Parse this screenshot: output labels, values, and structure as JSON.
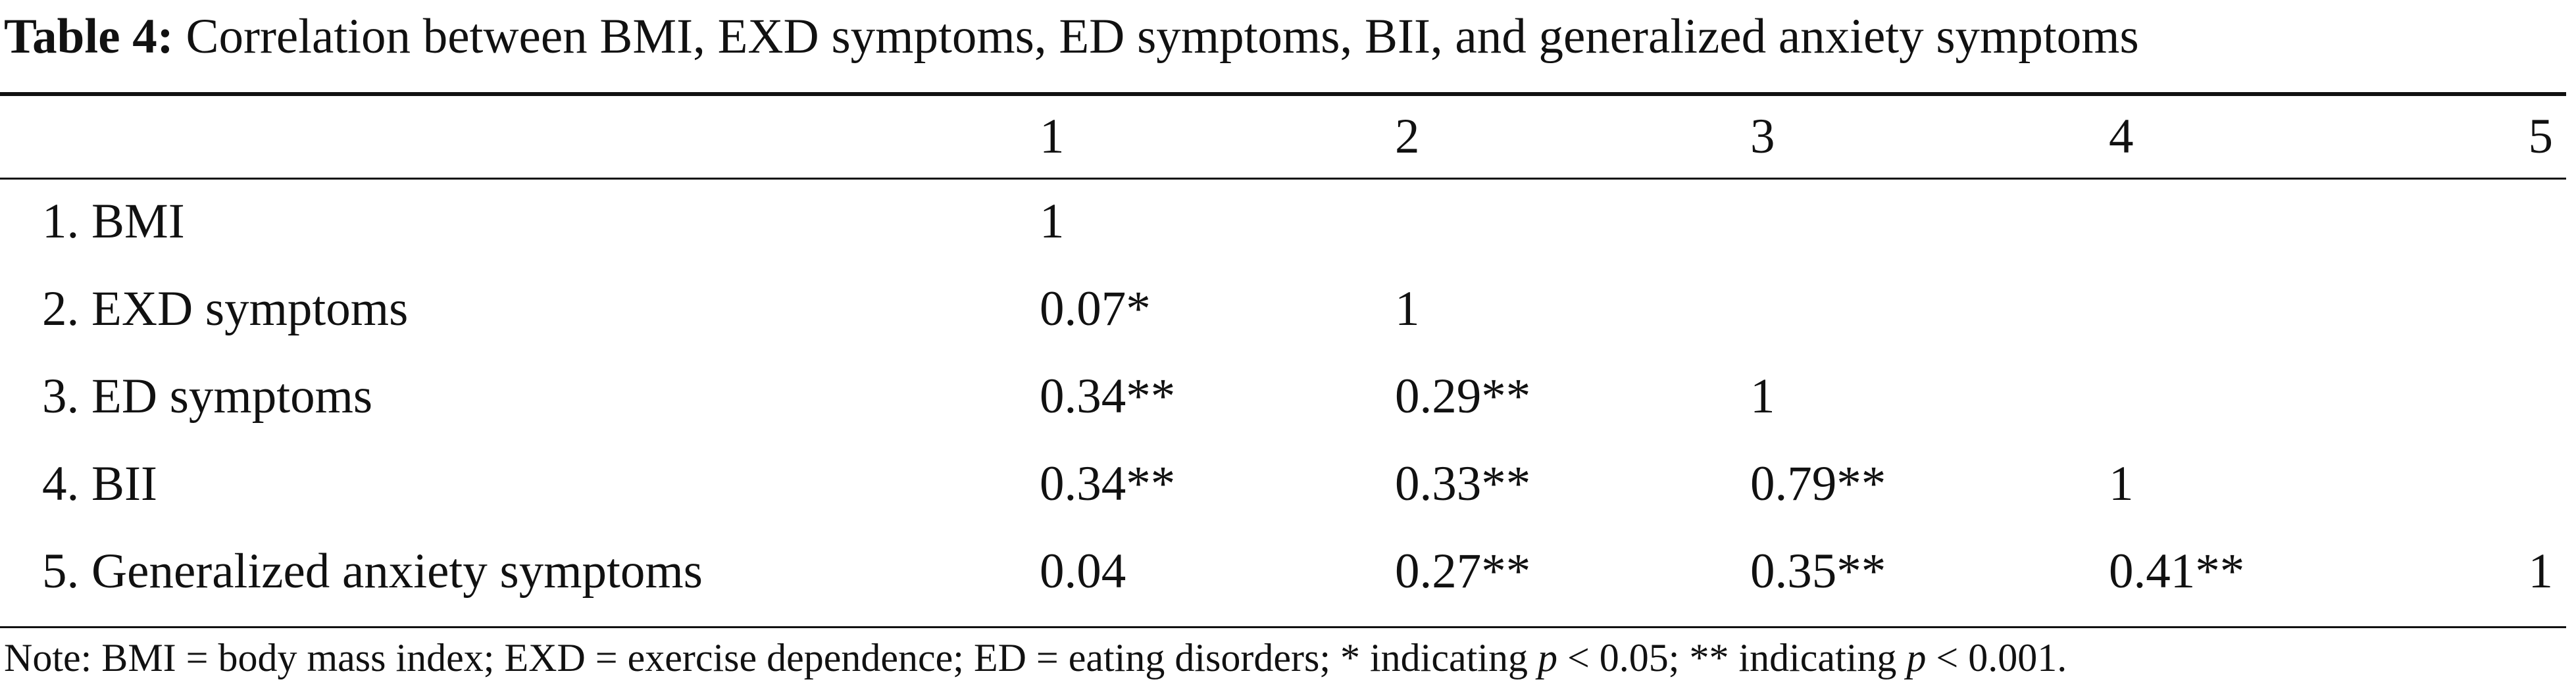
{
  "caption": {
    "label": "Table 4:",
    "text": "Correlation between BMI, EXD symptoms, ED symptoms, BII, and generalized anxiety symptoms"
  },
  "table": {
    "headers": [
      "",
      "1",
      "2",
      "3",
      "4",
      "5"
    ],
    "rows": [
      {
        "variable": "1. BMI",
        "values": [
          "1",
          "",
          "",
          "",
          ""
        ]
      },
      {
        "variable": "2. EXD symptoms",
        "values": [
          "0.07*",
          "1",
          "",
          "",
          ""
        ]
      },
      {
        "variable": "3. ED symptoms",
        "values": [
          "0.34**",
          "0.29**",
          "1",
          "",
          ""
        ]
      },
      {
        "variable": "4. BII",
        "values": [
          "0.34**",
          "0.33**",
          "0.79**",
          "1",
          ""
        ]
      },
      {
        "variable": "5. Generalized anxiety symptoms",
        "values": [
          "0.04",
          "0.27**",
          "0.35**",
          "0.41**",
          "1"
        ]
      }
    ]
  },
  "note": {
    "part1": "Note: BMI = body mass index; EXD = exercise dependence; ED = eating disorders; * indicating ",
    "p_symbol_1": "p",
    "part2": " < 0.05; ** indicating ",
    "p_symbol_2": "p",
    "part3": " < 0.001."
  }
}
